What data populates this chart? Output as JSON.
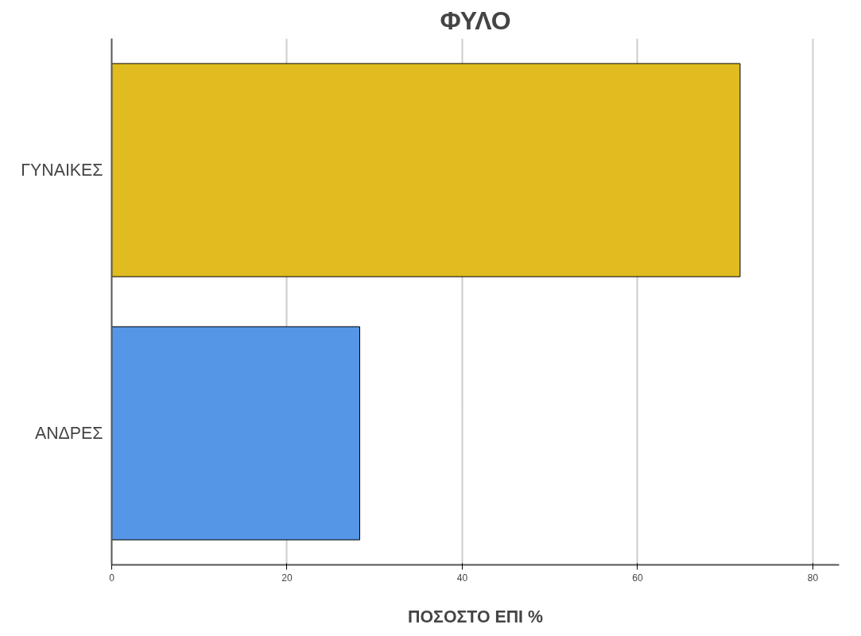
{
  "chart_data": {
    "type": "bar",
    "orientation": "horizontal",
    "title": "ΦΥΛΟ",
    "xlabel": "ΠΟΣΟΣΤΟ ΕΠΙ %",
    "categories": [
      "ΓΥΝΑΙΚΕΣ",
      "ΑΝΔΡΕΣ"
    ],
    "values": [
      71.7,
      28.3
    ],
    "colors": [
      "#e0bc20",
      "#5596e6"
    ],
    "xlim": [
      0,
      83
    ],
    "xticks": [
      0,
      20,
      40,
      60,
      80
    ],
    "grid": "x"
  }
}
